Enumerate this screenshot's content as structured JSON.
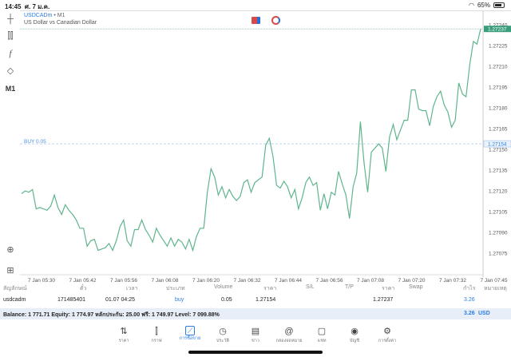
{
  "status_bar": {
    "time": "14:45",
    "date": "ศ. 7 ม.ค.",
    "battery": "65%",
    "battery_level": 0.65
  },
  "toolbar": {
    "timeframe": "M1"
  },
  "chart": {
    "symbol": "USDCADm",
    "timeframe": "M1",
    "description": "US Dollar vs Canadian Dollar",
    "buy_label": "BUY 0.05",
    "current_price": "1.27237",
    "open_price_label": "1.27154",
    "line_color": "#5fb58c",
    "price_ticks": [
      "1.27240",
      "1.27225",
      "1.27210",
      "1.27195",
      "1.27180",
      "1.27165",
      "1.27150",
      "1.27135",
      "1.27120",
      "1.27105",
      "1.27090",
      "1.27075"
    ],
    "time_ticks": [
      "7 Jan 05:30",
      "7 Jan 05:42",
      "7 Jan 05:56",
      "7 Jan 06:08",
      "7 Jan 06:20",
      "7 Jan 06:32",
      "7 Jan 06:44",
      "7 Jan 06:56",
      "7 Jan 07:08",
      "7 Jan 07:20",
      "7 Jan 07:32",
      "7 Jan 07:45"
    ]
  },
  "chart_data": {
    "type": "line",
    "ylim": [
      1.2707,
      1.2724
    ],
    "buy_level": 1.27154,
    "current": 1.27237,
    "values": [
      1.27118,
      1.2712,
      1.27119,
      1.27121,
      1.27107,
      1.27108,
      1.27107,
      1.27106,
      1.27109,
      1.27117,
      1.27108,
      1.27103,
      1.2711,
      1.27106,
      1.27103,
      1.27099,
      1.27093,
      1.27093,
      1.2708,
      1.27084,
      1.27085,
      1.27077,
      1.27078,
      1.27079,
      1.27082,
      1.27077,
      1.27084,
      1.27094,
      1.27099,
      1.27084,
      1.2708,
      1.27092,
      1.27092,
      1.27099,
      1.27092,
      1.27088,
      1.27083,
      1.27093,
      1.27088,
      1.27084,
      1.2708,
      1.27086,
      1.2708,
      1.27085,
      1.27083,
      1.27078,
      1.27085,
      1.27077,
      1.27087,
      1.27093,
      1.27093,
      1.27119,
      1.27136,
      1.2713,
      1.27117,
      1.27123,
      1.27115,
      1.27121,
      1.27116,
      1.27113,
      1.27116,
      1.27126,
      1.27128,
      1.27119,
      1.27126,
      1.27128,
      1.2713,
      1.27153,
      1.27158,
      1.27145,
      1.27124,
      1.27122,
      1.27127,
      1.27123,
      1.27115,
      1.27121,
      1.27107,
      1.27115,
      1.27126,
      1.2713,
      1.27124,
      1.27126,
      1.27106,
      1.27118,
      1.27107,
      1.27119,
      1.27117,
      1.27134,
      1.27125,
      1.27117,
      1.271,
      1.27123,
      1.27133,
      1.2717,
      1.2714,
      1.27119,
      1.27148,
      1.27151,
      1.27154,
      1.27151,
      1.27134,
      1.27159,
      1.27168,
      1.27157,
      1.27164,
      1.27171,
      1.27171,
      1.27193,
      1.27193,
      1.27179,
      1.27178,
      1.27178,
      1.27167,
      1.27181,
      1.27188,
      1.27192,
      1.27182,
      1.27177,
      1.27166,
      1.27171,
      1.27198,
      1.2719,
      1.27188,
      1.27211,
      1.27228,
      1.27226,
      1.27237
    ]
  },
  "table": {
    "headers": [
      "สัญลักษณ์",
      "ตั๋ว",
      "เวลา",
      "ประเภท",
      "Volume",
      "ราคา",
      "S/L",
      "T/P",
      "ราคา",
      "Swap",
      "กำไร",
      "หมายเหตุ"
    ],
    "row": {
      "symbol": "usdcadm",
      "ticket": "171485401",
      "time": "01.07 04:25",
      "type": "buy",
      "volume": "0.05",
      "open_price": "1.27154",
      "current_price": "1.27237",
      "profit": "3.26"
    }
  },
  "balance": {
    "text": "Balance: 1 771.71 Equity: 1 774.97 หลักประกัน: 25.00 ฟรี: 1 749.97 Level: 7 099.88%",
    "profit": "3.26",
    "currency": "USD"
  },
  "nav": [
    {
      "label": "ราคา",
      "icon": "arrows-icon",
      "glyph": "⇅"
    },
    {
      "label": "กราฟ",
      "icon": "candles-icon",
      "glyph": "⫿"
    },
    {
      "label": "การซื้อขาย",
      "icon": "trade-icon",
      "glyph": "📈",
      "active": true
    },
    {
      "label": "ประวัติ",
      "icon": "history-icon",
      "glyph": "◷"
    },
    {
      "label": "ข่าว",
      "icon": "news-icon",
      "glyph": "▤"
    },
    {
      "label": "กล่องจดหมาย",
      "icon": "mail-icon",
      "glyph": "@"
    },
    {
      "label": "แชท",
      "icon": "chat-icon",
      "glyph": "▢"
    },
    {
      "label": "บัญชี",
      "icon": "account-icon",
      "glyph": "◉"
    },
    {
      "label": "การตั้งค่า",
      "icon": "settings-icon",
      "glyph": "⚙"
    }
  ]
}
